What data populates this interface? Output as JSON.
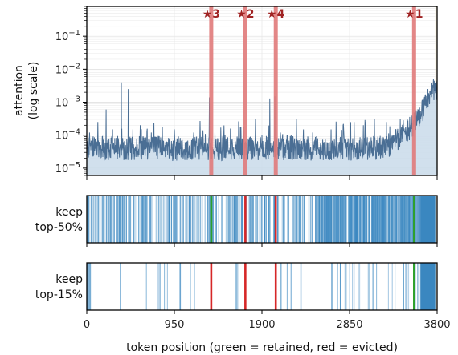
{
  "chart_data": [
    {
      "type": "area",
      "panel": "attention",
      "ylabel_lines": [
        "attention",
        "(log scale)"
      ],
      "yscale": "log",
      "xlim": [
        0,
        3800
      ],
      "ylim": [
        6e-06,
        0.8
      ],
      "yticks": [
        {
          "value": 1e-05,
          "base": "10",
          "exp": "−5"
        },
        {
          "value": 0.0001,
          "base": "10",
          "exp": "−4"
        },
        {
          "value": 0.001,
          "base": "10",
          "exp": "−3"
        },
        {
          "value": 0.01,
          "base": "10",
          "exp": "−2"
        },
        {
          "value": 0.1,
          "base": "10",
          "exp": "−1"
        }
      ],
      "grid": true,
      "baseline": 4e-05,
      "spikes": [
        {
          "x": 30,
          "y": 0.00012
        },
        {
          "x": 120,
          "y": 0.00025
        },
        {
          "x": 210,
          "y": 0.0006
        },
        {
          "x": 280,
          "y": 0.00015
        },
        {
          "x": 375,
          "y": 0.004
        },
        {
          "x": 450,
          "y": 0.0025
        },
        {
          "x": 500,
          "y": 0.00015
        },
        {
          "x": 580,
          "y": 0.0002
        },
        {
          "x": 700,
          "y": 0.00012
        },
        {
          "x": 820,
          "y": 0.00018
        },
        {
          "x": 950,
          "y": 0.00015
        },
        {
          "x": 1160,
          "y": 0.00012
        },
        {
          "x": 1260,
          "y": 0.00014
        },
        {
          "x": 1330,
          "y": 0.0014
        },
        {
          "x": 1390,
          "y": 0.00012
        },
        {
          "x": 1500,
          "y": 0.0001
        },
        {
          "x": 1560,
          "y": 0.00012
        },
        {
          "x": 1700,
          "y": 0.00018
        },
        {
          "x": 1830,
          "y": 0.0003
        },
        {
          "x": 1900,
          "y": 0.0001
        },
        {
          "x": 1985,
          "y": 0.0013
        },
        {
          "x": 2040,
          "y": 0.0015
        },
        {
          "x": 2100,
          "y": 0.00012
        },
        {
          "x": 2180,
          "y": 0.0001
        },
        {
          "x": 2350,
          "y": 0.00015
        },
        {
          "x": 2450,
          "y": 0.00012
        },
        {
          "x": 2650,
          "y": 0.00015
        },
        {
          "x": 2780,
          "y": 0.0002
        },
        {
          "x": 2900,
          "y": 0.00025
        },
        {
          "x": 3000,
          "y": 0.0002
        },
        {
          "x": 3120,
          "y": 0.0003
        },
        {
          "x": 3250,
          "y": 0.00025
        },
        {
          "x": 3400,
          "y": 0.0003
        },
        {
          "x": 3600,
          "y": 0.0006
        },
        {
          "x": 3650,
          "y": 0.0012
        },
        {
          "x": 3700,
          "y": 0.0025
        },
        {
          "x": 3760,
          "y": 0.005
        }
      ],
      "ramp": {
        "x_start": 3100,
        "y_start": 4e-05,
        "x_end": 3760,
        "y_end": 0.0025
      },
      "needles": [
        {
          "label": "★3",
          "x": 1350
        },
        {
          "label": "★2",
          "x": 1720
        },
        {
          "label": "★4",
          "x": 2050
        },
        {
          "label": "★1",
          "x": 3550
        }
      ],
      "shaded_tail": [
        3780,
        3800
      ]
    },
    {
      "type": "bar",
      "panel": "keep top-50%",
      "ylabel_lines": [
        "keep",
        "top-50%"
      ],
      "kept_pct": 50,
      "needle_status": [
        {
          "label": "★3",
          "x": 1350,
          "status": "retained"
        },
        {
          "label": "★2",
          "x": 1720,
          "status": "evicted"
        },
        {
          "label": "★4",
          "x": 2050,
          "status": "evicted"
        },
        {
          "label": "★1",
          "x": 3550,
          "status": "retained"
        }
      ],
      "dense_from": 3620
    },
    {
      "type": "bar",
      "panel": "keep top-15%",
      "ylabel_lines": [
        "keep",
        "top-15%"
      ],
      "kept_pct": 15,
      "needle_status": [
        {
          "label": "★3",
          "x": 1350,
          "status": "evicted"
        },
        {
          "label": "★2",
          "x": 1720,
          "status": "evicted"
        },
        {
          "label": "★4",
          "x": 2050,
          "status": "evicted"
        },
        {
          "label": "★1",
          "x": 3550,
          "status": "retained"
        }
      ],
      "dense_from": 3620
    }
  ],
  "xaxis": {
    "label": "token position  (green = retained, red = evicted)",
    "ticks": [
      "0",
      "950",
      "1900",
      "2850",
      "3800"
    ]
  },
  "colors": {
    "series_line": "#4a6e94",
    "series_fill": "#c9daea",
    "needle": "#e07a7a",
    "star_text": "#a02323",
    "kept_token": "#3a87c0",
    "retained": "#2ca02c",
    "evicted": "#d62728",
    "tail_shade": "#f7ecd2"
  }
}
